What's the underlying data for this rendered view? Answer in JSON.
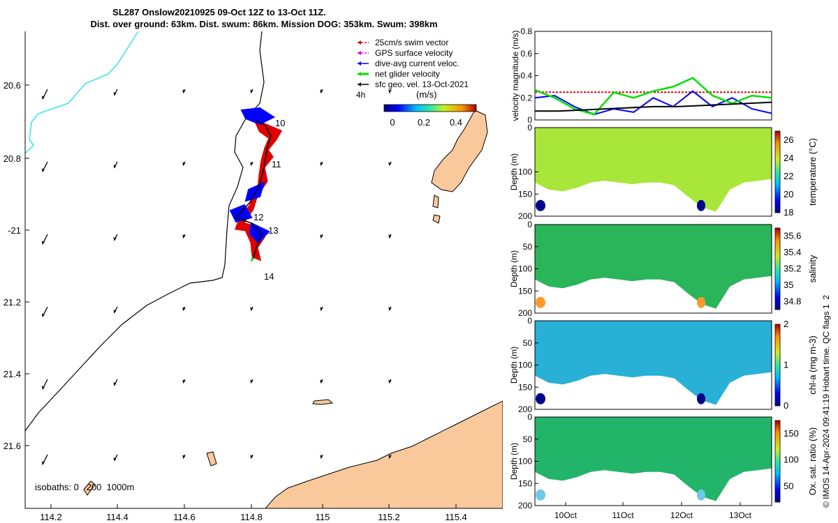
{
  "header": {
    "line1": "SL287 Onslow20210925 09-Oct 12Z to 13-Oct 11Z.",
    "line2": "Dist. over ground: 63km. Dist. swum: 86km. Mission DOG: 353km. Swum: 398km"
  },
  "map": {
    "lon_ticks": [
      "114.2",
      "114.4",
      "114.6",
      "114.8",
      "115",
      "115.2",
      "115.4"
    ],
    "lat_ticks": [
      "20.6",
      "20.8",
      "-21",
      "21.2",
      "21.4",
      "21.6"
    ],
    "legend": [
      {
        "label": "25cm/s swim vector",
        "color": "#e00000"
      },
      {
        "label": "GPS surface velocity",
        "color": "#e000e0"
      },
      {
        "label": "dive-avg current veloc.",
        "color": "#0000ff"
      },
      {
        "label": "net glider velocity",
        "color": "#00e000"
      },
      {
        "label": "sfc geo. vel. 13-Oct-2021",
        "color": "#000000"
      }
    ],
    "time_scale_label": "4h",
    "colorbar_unit": "(m/s)",
    "colorbar_ticks": [
      "0",
      "0.2",
      "0.4"
    ],
    "day_labels": [
      "10",
      "11",
      "12",
      "13",
      "14"
    ],
    "isobaths_label": "isobaths: 0   200  1000m",
    "land_color": "#f9c89b",
    "isobath_200_color": "#000000",
    "isobath_0_color": "#33e6e6"
  },
  "chart_data": [
    {
      "type": "line",
      "ylabel": "velocity magnitude (m/s)",
      "ylim": [
        0,
        0.8
      ],
      "yticks": [
        "0",
        "0.2",
        "0.4",
        "0.6",
        "0.8"
      ],
      "series": [
        {
          "name": "25cm/s swim vector",
          "color": "#e00000",
          "values": [
            0.25,
            0.25,
            0.25,
            0.25,
            0.25,
            0.25,
            0.25,
            0.25,
            0.25
          ]
        },
        {
          "name": "dive-avg current veloc.",
          "color": "#0000ff",
          "values": [
            0.2,
            0.22,
            0.12,
            0.05,
            0.1,
            0.07,
            0.2,
            0.12,
            0.26,
            0.12,
            0.2,
            0.1,
            0.06
          ]
        },
        {
          "name": "net glider velocity",
          "color": "#00e000",
          "values": [
            0.27,
            0.2,
            0.1,
            0.05,
            0.25,
            0.2,
            0.26,
            0.3,
            0.38,
            0.22,
            0.15,
            0.22,
            0.2
          ]
        },
        {
          "name": "sfc geo. vel.",
          "color": "#000000",
          "values": [
            0.08,
            0.08,
            0.09,
            0.1,
            0.11,
            0.12,
            0.12,
            0.13,
            0.14,
            0.15,
            0.16
          ]
        }
      ]
    },
    {
      "type": "heatmap",
      "ylabel": "Depth (m)",
      "yticks": [
        "0",
        "100",
        "150",
        "200"
      ],
      "cbar_label": "temperature (°C)",
      "cbar_ticks": [
        "26",
        "24",
        "22",
        "20",
        "18"
      ],
      "clim": [
        18,
        27
      ]
    },
    {
      "type": "heatmap",
      "ylabel": "Depth (m)",
      "yticks": [
        "0",
        "50",
        "100",
        "150",
        "200"
      ],
      "cbar_label": "salinity",
      "cbar_ticks": [
        "35.6",
        "35.4",
        "35.2",
        "35",
        "34.8"
      ],
      "clim": [
        34.7,
        35.7
      ]
    },
    {
      "type": "heatmap",
      "ylabel": "Depth (m)",
      "yticks": [
        "0",
        "50",
        "100",
        "150",
        "200"
      ],
      "cbar_label": "chl-a (mg m-3)",
      "cbar_ticks": [
        "2",
        "1",
        "0"
      ],
      "clim": [
        0,
        2
      ]
    },
    {
      "type": "heatmap",
      "ylabel": "Depth (m)",
      "yticks": [
        "0",
        "50",
        "100",
        "150",
        "200"
      ],
      "cbar_label": "Ox. sat. ratio (%)",
      "cbar_ticks": [
        "150",
        "100",
        "50"
      ],
      "clim": [
        20,
        175
      ]
    }
  ],
  "time_axis": [
    "10Oct",
    "11Oct",
    "12Oct",
    "13Oct"
  ],
  "footer": "© IMOS 14-Apr-2024 09:41:19 Hobart time. QC flags 1  2"
}
